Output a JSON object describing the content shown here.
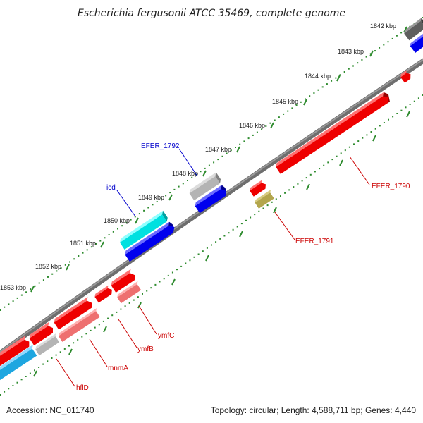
{
  "title": "Escherichia fergusonii ATCC 35469, complete genome",
  "accession": "Accession: NC_011740",
  "topology": "Topology: circular; Length: 4,588,711 bp; Genes: 4,440",
  "colors": {
    "backbone": "#666666",
    "tick": "#2e8b2e",
    "cds_forward_red": "#ee0000",
    "cds_reverse_blue": "#0000ee",
    "rna_cyan": "#00cccc",
    "pseudo_gray": "#a8a8a8",
    "pink": "#ee7070",
    "olive": "#b3a64d",
    "sky": "#1ea6e0",
    "label_red": "#cc0000",
    "label_blue": "#0000cc"
  },
  "ticks": [
    {
      "label": "1842 kbp"
    },
    {
      "label": "1843 kbp"
    },
    {
      "label": "1844 kbp"
    },
    {
      "label": "1845 kbp"
    },
    {
      "label": "1846 kbp"
    },
    {
      "label": "1847 kbp"
    },
    {
      "label": "1848 kbp"
    },
    {
      "label": "1849 kbp"
    },
    {
      "label": "1850 kbp"
    },
    {
      "label": "1851 kbp"
    },
    {
      "label": "1852 kbp"
    },
    {
      "label": "1853 kbp"
    }
  ],
  "gene_labels": {
    "efer_1792": "EFER_1792",
    "icd": "icd",
    "efer_1790": "EFER_1790",
    "efer_1791": "EFER_1791",
    "ymfc": "ymfC",
    "ymfb": "ymfB",
    "mnma": "mnmA",
    "hfld": "hflD"
  }
}
